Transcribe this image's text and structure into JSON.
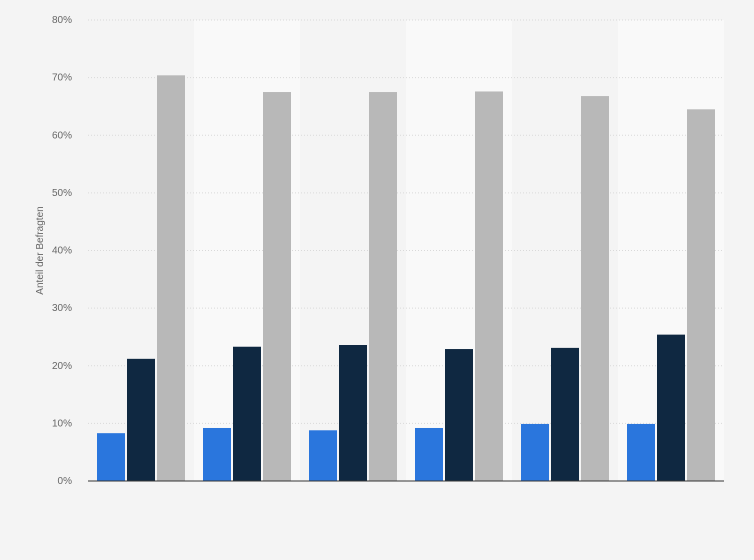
{
  "chart_data": {
    "type": "bar",
    "title": "",
    "ylabel": "Anteil der Befragten",
    "xlabel": "",
    "ylim": [
      0,
      80
    ],
    "yticks": [
      0,
      10,
      20,
      30,
      40,
      50,
      60,
      70,
      80
    ],
    "ytick_labels": [
      "0%",
      "10%",
      "20%",
      "30%",
      "40%",
      "50%",
      "60%",
      "70%",
      "80%"
    ],
    "grid": true,
    "legend": "none",
    "category_count": 6,
    "series": [
      {
        "color": "#2a76dd",
        "values": [
          8.3,
          9.2,
          8.8,
          9.2,
          9.9,
          9.9
        ]
      },
      {
        "color": "#0f2841",
        "values": [
          21.2,
          23.3,
          23.6,
          22.9,
          23.1,
          25.4
        ]
      },
      {
        "color": "#b8b8b8",
        "values": [
          70.4,
          67.5,
          67.5,
          67.6,
          66.8,
          64.5
        ]
      }
    ]
  }
}
